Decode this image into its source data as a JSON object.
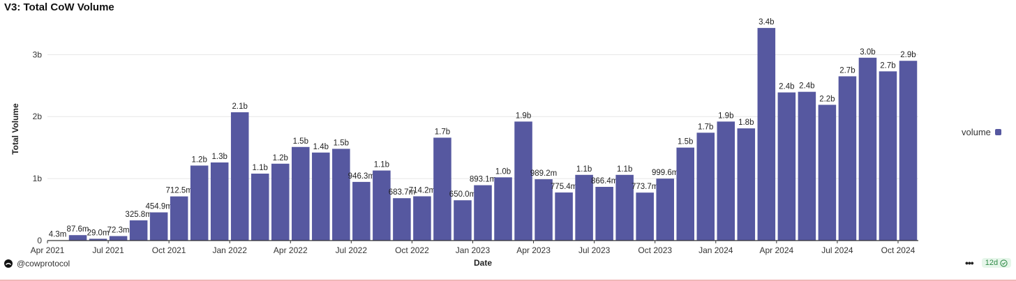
{
  "title": "V3: Total CoW Volume",
  "footer": {
    "username": "@cowprotocol",
    "more_label": "•••",
    "age_badge": "12d"
  },
  "colors": {
    "bar": "#5658a0",
    "grid": "#e6e6e6",
    "axis": "#333333",
    "badge_bg": "#e6f6ea",
    "badge_fg": "#2f8a47"
  },
  "legend": {
    "label": "volume",
    "placement": "right"
  },
  "chart_data": {
    "type": "bar",
    "title": "V3: Total CoW Volume",
    "xlabel": "Date",
    "ylabel": "Total Volume",
    "ylim": [
      0,
      3600000000
    ],
    "grid": true,
    "y_ticks": [
      {
        "value": 0,
        "label": "0"
      },
      {
        "value": 1000000000,
        "label": "1b"
      },
      {
        "value": 2000000000,
        "label": "2b"
      },
      {
        "value": 3000000000,
        "label": "3b"
      }
    ],
    "x_ticks": [
      {
        "index": 0,
        "label": "Apr 2021"
      },
      {
        "index": 3,
        "label": "Jul 2021"
      },
      {
        "index": 6,
        "label": "Oct 2021"
      },
      {
        "index": 9,
        "label": "Jan 2022"
      },
      {
        "index": 12,
        "label": "Apr 2022"
      },
      {
        "index": 15,
        "label": "Jul 2022"
      },
      {
        "index": 18,
        "label": "Oct 2022"
      },
      {
        "index": 21,
        "label": "Jan 2023"
      },
      {
        "index": 24,
        "label": "Apr 2023"
      },
      {
        "index": 27,
        "label": "Jul 2023"
      },
      {
        "index": 30,
        "label": "Oct 2023"
      },
      {
        "index": 33,
        "label": "Jan 2024"
      },
      {
        "index": 36,
        "label": "Apr 2024"
      },
      {
        "index": 39,
        "label": "Jul 2024"
      },
      {
        "index": 42,
        "label": "Oct 2024"
      }
    ],
    "categories": [
      "2021-04",
      "2021-05",
      "2021-06",
      "2021-07",
      "2021-08",
      "2021-09",
      "2021-10",
      "2021-11",
      "2021-12",
      "2022-01",
      "2022-02",
      "2022-03",
      "2022-04",
      "2022-05",
      "2022-06",
      "2022-07",
      "2022-08",
      "2022-09",
      "2022-10",
      "2022-11",
      "2022-12",
      "2023-01",
      "2023-02",
      "2023-03",
      "2023-04",
      "2023-05",
      "2023-06",
      "2023-07",
      "2023-08",
      "2023-09",
      "2023-10",
      "2023-11",
      "2023-12",
      "2024-01",
      "2024-02",
      "2024-03",
      "2024-04",
      "2024-05",
      "2024-06",
      "2024-07",
      "2024-08",
      "2024-09",
      "2024-10"
    ],
    "series": [
      {
        "name": "volume",
        "values": [
          4300000,
          87600000,
          29000000,
          72300000,
          325800000,
          454900000,
          712500000,
          1210000000,
          1260000000,
          2070000000,
          1080000000,
          1240000000,
          1510000000,
          1420000000,
          1480000000,
          946300000,
          1130000000,
          683700000,
          714200000,
          1660000000,
          650000000,
          893100000,
          1020000000,
          1920000000,
          989200000,
          775400000,
          1060000000,
          866400000,
          1060000000,
          773700000,
          999600000,
          1500000000,
          1740000000,
          1920000000,
          1810000000,
          3430000000,
          2390000000,
          2400000000,
          2190000000,
          2650000000,
          2950000000,
          2730000000,
          2900000000
        ],
        "labels": [
          "4.3m",
          "87.6m",
          "29.0m",
          "72.3m",
          "325.8m",
          "454.9m",
          "712.5m",
          "1.2b",
          "1.3b",
          "2.1b",
          "1.1b",
          "1.2b",
          "1.5b",
          "1.4b",
          "1.5b",
          "946.3m",
          "1.1b",
          "683.7m",
          "714.2m",
          "1.7b",
          "650.0m",
          "893.1m",
          "1.0b",
          "1.9b",
          "989.2m",
          "775.4m",
          "1.1b",
          "866.4m",
          "1.1b",
          "773.7m",
          "999.6m",
          "1.5b",
          "1.7b",
          "1.9b",
          "1.8b",
          "3.4b",
          "2.4b",
          "2.4b",
          "2.2b",
          "2.7b",
          "3.0b",
          "2.7b",
          "2.9b"
        ]
      }
    ]
  }
}
